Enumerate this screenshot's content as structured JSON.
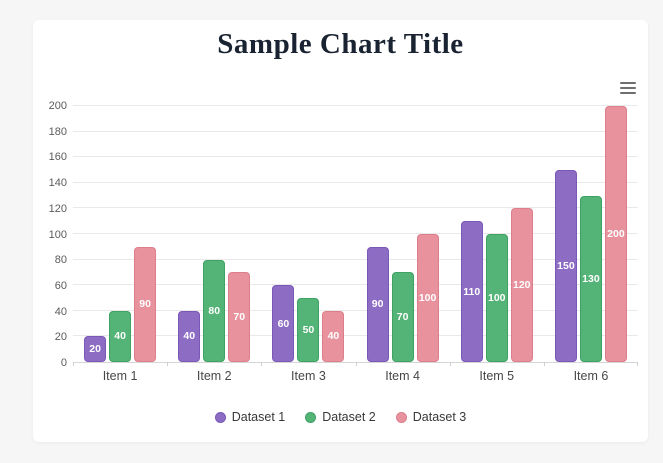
{
  "page": {
    "background_color": "#f6f6f7",
    "card_background_color": "#ffffff"
  },
  "toolbar": {
    "menu_icon": "hamburger-menu-icon"
  },
  "chart_data": {
    "type": "bar",
    "title": "Sample Chart Title",
    "title_color": "#1a2332",
    "xlabel": "",
    "ylabel": "",
    "categories": [
      "Item 1",
      "Item 2",
      "Item 3",
      "Item 4",
      "Item 5",
      "Item 6"
    ],
    "series": [
      {
        "name": "Dataset 1",
        "values": [
          20,
          40,
          60,
          90,
          110,
          150
        ],
        "fill": "#8d6cc4",
        "border": "#7a58b8"
      },
      {
        "name": "Dataset 2",
        "values": [
          40,
          80,
          50,
          70,
          100,
          130
        ],
        "fill": "#54b376",
        "border": "#3ea263"
      },
      {
        "name": "Dataset 3",
        "values": [
          90,
          70,
          40,
          100,
          120,
          200
        ],
        "fill": "#e7929d",
        "border": "#dd7e8c"
      }
    ],
    "ylim": [
      0,
      200
    ],
    "yticks": [
      0,
      20,
      40,
      60,
      80,
      100,
      120,
      140,
      160,
      180,
      200
    ],
    "grid": true,
    "data_labels": true,
    "data_label_color": "#ffffff",
    "legend_position": "bottom"
  }
}
